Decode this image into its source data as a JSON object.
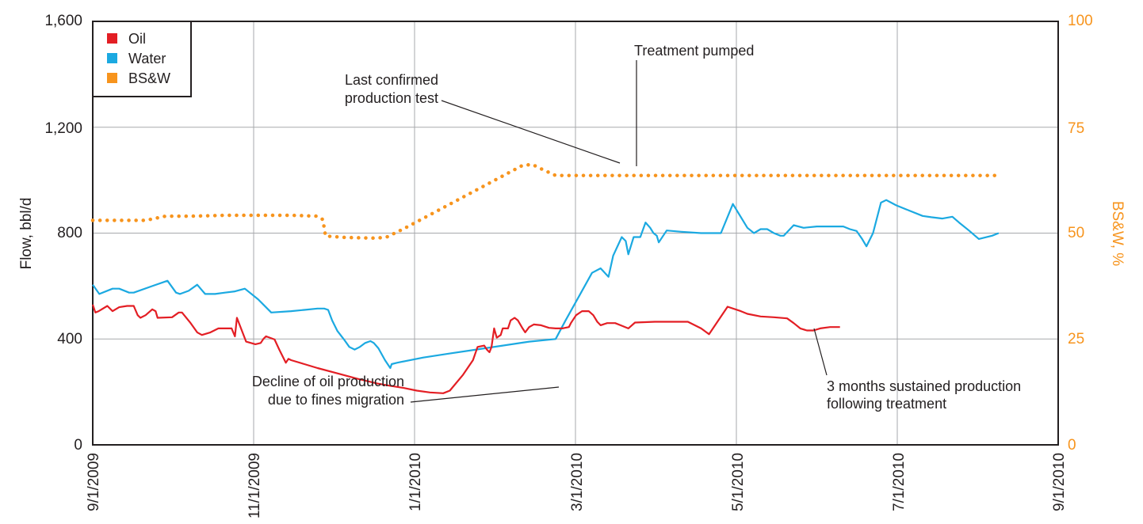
{
  "chart_data": {
    "type": "line",
    "title": "",
    "xlabel": "",
    "ylabel": "Flow, bbl/d",
    "y2label": "BS&W, %",
    "ylim": [
      0,
      1600
    ],
    "y2lim": [
      0,
      100
    ],
    "grid": true,
    "legend_position": "top-left",
    "x_ticks": [
      "9/1/2009",
      "11/1/2009",
      "1/1/2010",
      "3/1/2010",
      "5/1/2010",
      "7/1/2010",
      "9/1/2010"
    ],
    "y_ticks": [
      "0",
      "400",
      "800",
      "1,200",
      "1,600"
    ],
    "y2_ticks": [
      "0",
      "25",
      "50",
      "75",
      "100"
    ],
    "colors": {
      "oil": "#e31e24",
      "water": "#1ba9e1",
      "bsw": "#f7941d",
      "grid": "#a7a9ac",
      "text": "#231f20"
    },
    "legend": [
      "Oil",
      "Water",
      "BS&W"
    ],
    "series": [
      {
        "name": "Oil",
        "key": "oil",
        "axis": "left",
        "points": [
          [
            0,
            530
          ],
          [
            4,
            500
          ],
          [
            9,
            505
          ],
          [
            22,
            525
          ],
          [
            30,
            505
          ],
          [
            40,
            520
          ],
          [
            52,
            525
          ],
          [
            62,
            525
          ],
          [
            68,
            490
          ],
          [
            72,
            480
          ],
          [
            80,
            490
          ],
          [
            90,
            512
          ],
          [
            95,
            505
          ],
          [
            98,
            480
          ],
          [
            120,
            482
          ],
          [
            130,
            500
          ],
          [
            135,
            500
          ],
          [
            148,
            460
          ],
          [
            158,
            425
          ],
          [
            165,
            415
          ],
          [
            178,
            425
          ],
          [
            190,
            440
          ],
          [
            210,
            440
          ],
          [
            215,
            410
          ],
          [
            218,
            480
          ],
          [
            232,
            390
          ],
          [
            246,
            380
          ],
          [
            254,
            385
          ],
          [
            258,
            400
          ],
          [
            262,
            410
          ],
          [
            275,
            398
          ],
          [
            282,
            360
          ],
          [
            292,
            310
          ],
          [
            296,
            325
          ],
          [
            300,
            320
          ],
          [
            320,
            305
          ],
          [
            340,
            290
          ],
          [
            370,
            270
          ],
          [
            400,
            250
          ],
          [
            430,
            232
          ],
          [
            450,
            223
          ],
          [
            470,
            215
          ],
          [
            490,
            205
          ],
          [
            510,
            198
          ],
          [
            530,
            195
          ],
          [
            540,
            205
          ],
          [
            560,
            265
          ],
          [
            575,
            320
          ],
          [
            582,
            370
          ],
          [
            592,
            375
          ],
          [
            596,
            360
          ],
          [
            600,
            350
          ],
          [
            603,
            370
          ],
          [
            607,
            440
          ],
          [
            611,
            405
          ],
          [
            617,
            415
          ],
          [
            620,
            440
          ],
          [
            628,
            440
          ],
          [
            632,
            470
          ],
          [
            638,
            480
          ],
          [
            643,
            470
          ],
          [
            650,
            440
          ],
          [
            654,
            425
          ],
          [
            660,
            445
          ],
          [
            667,
            455
          ],
          [
            678,
            452
          ],
          [
            690,
            442
          ],
          [
            700,
            440
          ],
          [
            710,
            440
          ],
          [
            720,
            445
          ],
          [
            723,
            460
          ],
          [
            731,
            490
          ],
          [
            740,
            505
          ],
          [
            750,
            505
          ],
          [
            757,
            490
          ],
          [
            763,
            465
          ],
          [
            768,
            452
          ],
          [
            778,
            460
          ],
          [
            790,
            460
          ],
          [
            800,
            450
          ],
          [
            810,
            440
          ],
          [
            820,
            462
          ],
          [
            850,
            465
          ],
          [
            880,
            465
          ],
          [
            900,
            465
          ],
          [
            920,
            440
          ],
          [
            932,
            418
          ],
          [
            960,
            522
          ],
          [
            980,
            505
          ],
          [
            990,
            495
          ],
          [
            1010,
            485
          ],
          [
            1030,
            482
          ],
          [
            1050,
            478
          ],
          [
            1060,
            460
          ],
          [
            1070,
            440
          ],
          [
            1080,
            432
          ],
          [
            1090,
            432
          ],
          [
            1100,
            440
          ],
          [
            1115,
            445
          ],
          [
            1130,
            445
          ]
        ]
      },
      {
        "name": "Water",
        "key": "water",
        "axis": "left",
        "points": [
          [
            0,
            605
          ],
          [
            10,
            570
          ],
          [
            30,
            590
          ],
          [
            40,
            590
          ],
          [
            55,
            575
          ],
          [
            62,
            575
          ],
          [
            90,
            600
          ],
          [
            113,
            620
          ],
          [
            126,
            575
          ],
          [
            132,
            570
          ],
          [
            145,
            582
          ],
          [
            158,
            605
          ],
          [
            170,
            570
          ],
          [
            185,
            570
          ],
          [
            200,
            575
          ],
          [
            215,
            580
          ],
          [
            230,
            590
          ],
          [
            250,
            550
          ],
          [
            270,
            500
          ],
          [
            300,
            505
          ],
          [
            320,
            510
          ],
          [
            340,
            515
          ],
          [
            350,
            515
          ],
          [
            356,
            510
          ],
          [
            362,
            470
          ],
          [
            370,
            430
          ],
          [
            380,
            398
          ],
          [
            388,
            370
          ],
          [
            396,
            360
          ],
          [
            404,
            370
          ],
          [
            412,
            385
          ],
          [
            420,
            392
          ],
          [
            425,
            385
          ],
          [
            432,
            365
          ],
          [
            442,
            320
          ],
          [
            450,
            290
          ],
          [
            452,
            305
          ],
          [
            460,
            310
          ],
          [
            500,
            330
          ],
          [
            540,
            345
          ],
          [
            580,
            360
          ],
          [
            620,
            375
          ],
          [
            660,
            390
          ],
          [
            700,
            400
          ],
          [
            715,
            470
          ],
          [
            735,
            560
          ],
          [
            755,
            650
          ],
          [
            768,
            667
          ],
          [
            780,
            635
          ],
          [
            787,
            715
          ],
          [
            800,
            785
          ],
          [
            806,
            770
          ],
          [
            810,
            720
          ],
          [
            818,
            785
          ],
          [
            828,
            785
          ],
          [
            836,
            840
          ],
          [
            843,
            820
          ],
          [
            848,
            800
          ],
          [
            853,
            790
          ],
          [
            856,
            765
          ],
          [
            868,
            810
          ],
          [
            890,
            805
          ],
          [
            920,
            800
          ],
          [
            950,
            800
          ],
          [
            968,
            910
          ],
          [
            990,
            820
          ],
          [
            1000,
            800
          ],
          [
            1010,
            815
          ],
          [
            1020,
            815
          ],
          [
            1030,
            800
          ],
          [
            1040,
            790
          ],
          [
            1045,
            790
          ],
          [
            1060,
            830
          ],
          [
            1075,
            820
          ],
          [
            1095,
            825
          ],
          [
            1115,
            825
          ],
          [
            1135,
            825
          ],
          [
            1145,
            815
          ],
          [
            1155,
            808
          ],
          [
            1163,
            780
          ],
          [
            1170,
            750
          ],
          [
            1180,
            800
          ],
          [
            1192,
            915
          ],
          [
            1200,
            925
          ],
          [
            1215,
            905
          ],
          [
            1235,
            885
          ],
          [
            1255,
            865
          ],
          [
            1268,
            860
          ],
          [
            1285,
            855
          ],
          [
            1300,
            862
          ],
          [
            1310,
            840
          ],
          [
            1325,
            810
          ],
          [
            1340,
            778
          ],
          [
            1360,
            790
          ],
          [
            1370,
            800
          ]
        ]
      },
      {
        "name": "BS&W",
        "key": "bsw",
        "axis": "right",
        "points": [
          [
            0,
            53
          ],
          [
            40,
            53
          ],
          [
            80,
            53
          ],
          [
            110,
            54
          ],
          [
            150,
            54
          ],
          [
            200,
            54.2
          ],
          [
            250,
            54.2
          ],
          [
            300,
            54.2
          ],
          [
            340,
            54
          ],
          [
            348,
            53.2
          ],
          [
            352,
            49.3
          ],
          [
            380,
            49
          ],
          [
            400,
            48.9
          ],
          [
            430,
            48.8
          ],
          [
            445,
            49.1
          ],
          [
            470,
            51
          ],
          [
            500,
            53.5
          ],
          [
            530,
            56
          ],
          [
            560,
            58.5
          ],
          [
            590,
            61
          ],
          [
            620,
            63.5
          ],
          [
            650,
            66
          ],
          [
            665,
            66.2
          ],
          [
            675,
            65.4
          ],
          [
            700,
            63.6
          ],
          [
            750,
            63.6
          ],
          [
            850,
            63.6
          ],
          [
            950,
            63.6
          ],
          [
            1050,
            63.6
          ],
          [
            1150,
            63.6
          ],
          [
            1250,
            63.6
          ],
          [
            1370,
            63.6
          ]
        ]
      }
    ],
    "annotations": {
      "last_test": [
        "Last confirmed",
        "production test"
      ],
      "treatment": [
        "Treatment pumped"
      ],
      "decline": [
        "Decline of oil production",
        "due to fines migration"
      ],
      "sustained": [
        "3 months sustained production",
        "following treatment"
      ]
    }
  }
}
